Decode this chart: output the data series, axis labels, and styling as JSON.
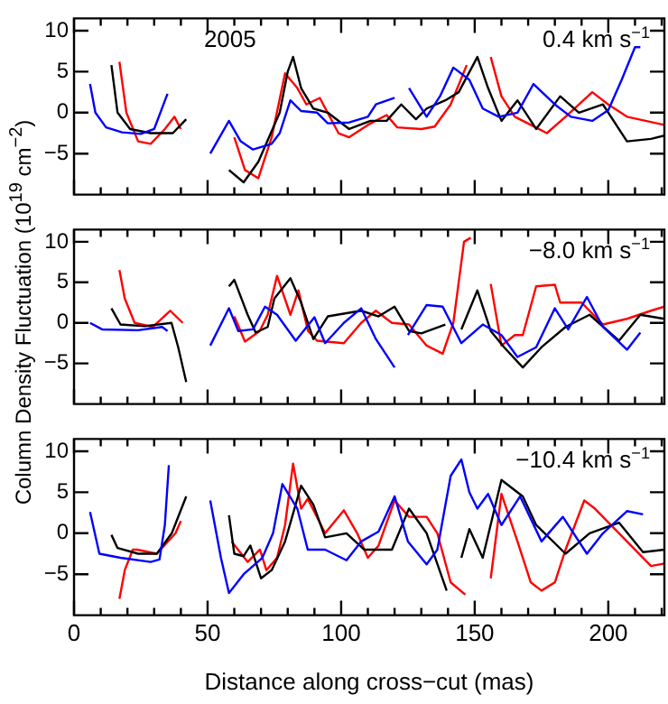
{
  "chart_data": [
    {
      "type": "line",
      "annotations": [
        "2005",
        "0.4 km s$^{−1}$"
      ],
      "tick_labels": "y",
      "grid": false,
      "legend": false,
      "xlim": [
        0,
        221
      ],
      "ylim": [
        -10,
        11.5
      ],
      "xticks": [
        0,
        {
          "value": 10,
          "label": null
        },
        {
          "value": 20,
          "label": null
        },
        {
          "value": 30,
          "label": null
        },
        {
          "value": 40,
          "label": null
        },
        50,
        {
          "value": 60,
          "label": null
        },
        {
          "value": 70,
          "label": null
        },
        {
          "value": 80,
          "label": null
        },
        {
          "value": 90,
          "label": null
        },
        100,
        {
          "value": 110,
          "label": null
        },
        {
          "value": 120,
          "label": null
        },
        {
          "value": 130,
          "label": null
        },
        {
          "value": 140,
          "label": null
        },
        150,
        {
          "value": 160,
          "label": null
        },
        {
          "value": 170,
          "label": null
        },
        {
          "value": 180,
          "label": null
        },
        {
          "value": 190,
          "label": null
        },
        200,
        {
          "value": 210,
          "label": null
        },
        {
          "value": 220,
          "label": null
        }
      ],
      "yticks": [
        -5,
        0,
        5,
        10
      ],
      "series": [
        {
          "color": "#0000ff",
          "x": [
            6,
            8,
            12,
            18,
            25,
            30,
            35,
            43,
            51,
            58,
            62.4,
            67,
            74,
            77,
            81,
            85,
            91,
            95,
            103,
            110,
            113,
            120,
            122,
            125.4,
            132,
            137,
            142,
            148,
            153,
            159,
            166,
            172,
            180,
            186,
            194,
            200,
            205,
            210,
            212
          ],
          "values": [
            3.5,
            0,
            -1.8,
            -2.4,
            -2.6,
            -2,
            2.3,
            null,
            -5,
            -1,
            -3.5,
            -4.5,
            -3.8,
            -2.5,
            1.5,
            0.2,
            0,
            -1.3,
            -1.2,
            -0.5,
            1,
            1.8,
            null,
            3,
            -0.5,
            2,
            5.5,
            4,
            0.5,
            -0.5,
            0,
            3.5,
            1,
            -0.5,
            -1,
            0.3,
            4,
            8,
            8
          ]
        },
        {
          "color": "#000000",
          "x": [
            14,
            16.3,
            21,
            28.7,
            37,
            42,
            50,
            58,
            63.5,
            69,
            77,
            80,
            82,
            85,
            89.6,
            95,
            103,
            111,
            117,
            122.5,
            128,
            132,
            139,
            144,
            151,
            155,
            160,
            166,
            173,
            182,
            189,
            198,
            207,
            216,
            221
          ],
          "values": [
            5.8,
            0,
            -2,
            -2.5,
            -2.5,
            -0.8,
            null,
            -7,
            -8.5,
            -6,
            0,
            5,
            6.8,
            3,
            0.5,
            0,
            -2,
            -1,
            -1,
            1,
            -0.8,
            0.5,
            1.5,
            2.5,
            6.8,
            3,
            -1,
            1.5,
            -2,
            2,
            0,
            1,
            -3.5,
            -3.2,
            -2.8
          ]
        },
        {
          "color": "#ff0000",
          "x": [
            17,
            19.6,
            24,
            28.7,
            34,
            37.6,
            40,
            50,
            60,
            64,
            69,
            74,
            79,
            83.6,
            87,
            92,
            99,
            103,
            110,
            117,
            121,
            130,
            135,
            141,
            147,
            151,
            156,
            160,
            165,
            171,
            177,
            184,
            194,
            200,
            207,
            221
          ],
          "values": [
            6.2,
            0,
            -3.5,
            -3.8,
            -2,
            -0.5,
            -2,
            null,
            -3,
            -7,
            -8,
            -3,
            4.8,
            3,
            1,
            1.8,
            -2.5,
            -3,
            -1.5,
            -0.3,
            -1.8,
            -2,
            -1.7,
            1,
            5.8,
            null,
            6.8,
            2,
            -0.5,
            -1.5,
            -2.5,
            -0.5,
            2.5,
            1,
            -0.5,
            -1.5
          ]
        }
      ]
    },
    {
      "type": "line",
      "ylabel": "Column Density Fluctuation (10$^{19}$ cm$^{−2}$)",
      "annotations": [
        "−8.0 km s$^{−1}$"
      ],
      "tick_labels": "y",
      "grid": false,
      "legend": false,
      "xlim": [
        0,
        221
      ],
      "ylim": [
        -10,
        11.5
      ],
      "xticks": [
        0,
        {
          "value": 10,
          "label": null
        },
        {
          "value": 20,
          "label": null
        },
        {
          "value": 30,
          "label": null
        },
        {
          "value": 40,
          "label": null
        },
        50,
        {
          "value": 60,
          "label": null
        },
        {
          "value": 70,
          "label": null
        },
        {
          "value": 80,
          "label": null
        },
        {
          "value": 90,
          "label": null
        },
        100,
        {
          "value": 110,
          "label": null
        },
        {
          "value": 120,
          "label": null
        },
        {
          "value": 130,
          "label": null
        },
        {
          "value": 140,
          "label": null
        },
        150,
        {
          "value": 160,
          "label": null
        },
        {
          "value": 170,
          "label": null
        },
        {
          "value": 180,
          "label": null
        },
        {
          "value": 190,
          "label": null
        },
        200,
        {
          "value": 210,
          "label": null
        },
        {
          "value": 220,
          "label": null
        }
      ],
      "yticks": [
        -5,
        0,
        5,
        10
      ],
      "series": [
        {
          "color": "#0000ff",
          "x": [
            6,
            10.5,
            24,
            33,
            35,
            43,
            51,
            58,
            61.5,
            67,
            71.5,
            76,
            83,
            90,
            94,
            101,
            107.5,
            113,
            120,
            122,
            125,
            132,
            138,
            145,
            153,
            160,
            166,
            173,
            180,
            185,
            192,
            198,
            207,
            212
          ],
          "values": [
            0,
            -0.8,
            -0.9,
            -0.5,
            -1,
            null,
            -2.8,
            1.8,
            -1,
            -0.8,
            2,
            1,
            -2.2,
            0.7,
            -2.5,
            0,
            1.8,
            -2,
            -5.5,
            null,
            -1.5,
            2.2,
            2,
            -2.5,
            -0.2,
            -1.5,
            -4.2,
            -3,
            1.8,
            -0.8,
            3.2,
            -0.5,
            -3.3,
            -1.2
          ]
        },
        {
          "color": "#000000",
          "x": [
            14,
            17.4,
            26.4,
            36.5,
            39,
            42,
            50,
            58,
            60,
            65,
            68,
            72.5,
            75,
            81,
            85,
            89.6,
            95,
            107.5,
            114,
            120,
            125.4,
            130,
            139,
            142,
            145,
            151,
            156,
            161,
            168,
            175,
            184,
            193,
            204,
            212,
            221
          ],
          "values": [
            1.8,
            -0.2,
            -0.4,
            0,
            -3,
            -7.3,
            null,
            4.5,
            5.3,
            1,
            -1.2,
            -0.5,
            3,
            5.5,
            2.5,
            -2,
            0.8,
            1.5,
            0.8,
            2,
            -1,
            -1.3,
            -0.2,
            null,
            -0.8,
            4,
            -1,
            -3,
            -5.5,
            -3,
            -0.5,
            1,
            -2.2,
            1,
            0.5
          ]
        },
        {
          "color": "#ff0000",
          "x": [
            17,
            19,
            22.7,
            29.5,
            36,
            40.7,
            50,
            60,
            64,
            69.5,
            72.5,
            76,
            81,
            84,
            87.6,
            91,
            101,
            107.5,
            113,
            119,
            125.4,
            132,
            138,
            142,
            146,
            148.5,
            152,
            156,
            160,
            165,
            168,
            173,
            180,
            182,
            190,
            198,
            207,
            216,
            221
          ],
          "values": [
            6.5,
            3,
            0,
            -0.5,
            1.5,
            0,
            null,
            0.8,
            -2.3,
            -1,
            1,
            5.8,
            1,
            4,
            -1,
            -2.2,
            -2.5,
            0,
            1.5,
            0,
            -0.2,
            -2.8,
            -3.8,
            0,
            10,
            10.5,
            null,
            4.8,
            -2.8,
            -1.5,
            -1.5,
            4.5,
            4.7,
            2.5,
            2.5,
            -0.2,
            0.5,
            1.5,
            2
          ]
        }
      ]
    },
    {
      "type": "line",
      "xlabel": "Distance along cross−cut (mas)",
      "annotations": [
        "−10.4 km s$^{−1}$"
      ],
      "grid": false,
      "legend": false,
      "xlim": [
        0,
        221
      ],
      "ylim": [
        -10,
        11.5
      ],
      "xticks": [
        0,
        {
          "value": 10,
          "label": null
        },
        {
          "value": 20,
          "label": null
        },
        {
          "value": 30,
          "label": null
        },
        {
          "value": 40,
          "label": null
        },
        50,
        {
          "value": 60,
          "label": null
        },
        {
          "value": 70,
          "label": null
        },
        {
          "value": 80,
          "label": null
        },
        {
          "value": 90,
          "label": null
        },
        100,
        {
          "value": 110,
          "label": null
        },
        {
          "value": 120,
          "label": null
        },
        {
          "value": 130,
          "label": null
        },
        {
          "value": 140,
          "label": null
        },
        150,
        {
          "value": 160,
          "label": null
        },
        {
          "value": 170,
          "label": null
        },
        {
          "value": 180,
          "label": null
        },
        {
          "value": 190,
          "label": null
        },
        200,
        {
          "value": 210,
          "label": null
        },
        {
          "value": 220,
          "label": null
        }
      ],
      "yticks": [
        -5,
        0,
        5,
        10
      ],
      "series": [
        {
          "color": "#0000ff",
          "x": [
            6,
            9.5,
            17.4,
            28.7,
            32,
            34,
            35.5,
            43,
            51,
            55,
            58,
            63.5,
            70.5,
            74.5,
            78,
            83.6,
            87.5,
            94,
            102,
            107.5,
            114,
            120,
            125,
            132,
            136,
            141,
            145,
            148,
            151,
            155,
            160,
            167,
            175,
            183,
            192,
            198,
            207,
            213
          ],
          "values": [
            2.6,
            -2.5,
            -3,
            -3.5,
            -3.2,
            1,
            8.3,
            null,
            4,
            -3,
            -7.3,
            -5,
            -3,
            0,
            6,
            3,
            -2,
            -2,
            -3.3,
            -1,
            0.2,
            4.5,
            -1,
            -3.8,
            -2,
            7,
            9,
            5,
            3,
            4.8,
            1,
            4.5,
            -1,
            2,
            -2.5,
            0,
            2.7,
            2.3
          ]
        },
        {
          "color": "#000000",
          "x": [
            14,
            16.3,
            24,
            31,
            36.6,
            42,
            50,
            58,
            60,
            63.5,
            66,
            70,
            74,
            79,
            85,
            89.6,
            94,
            102,
            108.6,
            119,
            125.4,
            132,
            139.5,
            142,
            145,
            148,
            153,
            160,
            168,
            173,
            184,
            193,
            204,
            213,
            221
          ],
          "values": [
            -0.2,
            -1.8,
            -2.5,
            -2.5,
            0,
            4.5,
            null,
            2.2,
            -2.5,
            -2.8,
            -1.5,
            -5.5,
            -4.5,
            -1,
            5.8,
            3.5,
            -0.5,
            0,
            -2,
            -2,
            3,
            0,
            -7,
            null,
            -3,
            0.5,
            -3,
            6.5,
            4.5,
            1,
            -2.5,
            0,
            1.3,
            -2.3,
            -2
          ]
        },
        {
          "color": "#ff0000",
          "x": [
            17,
            19,
            22,
            23.6,
            31,
            38,
            40,
            50,
            59,
            65,
            69.6,
            72,
            76,
            79,
            82,
            85,
            87.5,
            94,
            101,
            106,
            110,
            114,
            120,
            125.4,
            132,
            136,
            141,
            146.5,
            151,
            156,
            160,
            166,
            171,
            175,
            180,
            184,
            191,
            195,
            207,
            216,
            221
          ],
          "values": [
            -8,
            -4.5,
            -2,
            -2,
            -2.5,
            0,
            1.5,
            null,
            -1,
            -3.5,
            -2,
            -4.5,
            -3,
            1,
            8.5,
            3,
            4.2,
            0,
            2.8,
            0,
            -3,
            -1.5,
            4,
            2,
            2,
            0,
            -6,
            -7.5,
            null,
            -5.5,
            4.8,
            -1,
            -6,
            -7,
            -6,
            -2,
            4,
            3,
            -1,
            -4,
            -3.7
          ]
        }
      ]
    }
  ]
}
